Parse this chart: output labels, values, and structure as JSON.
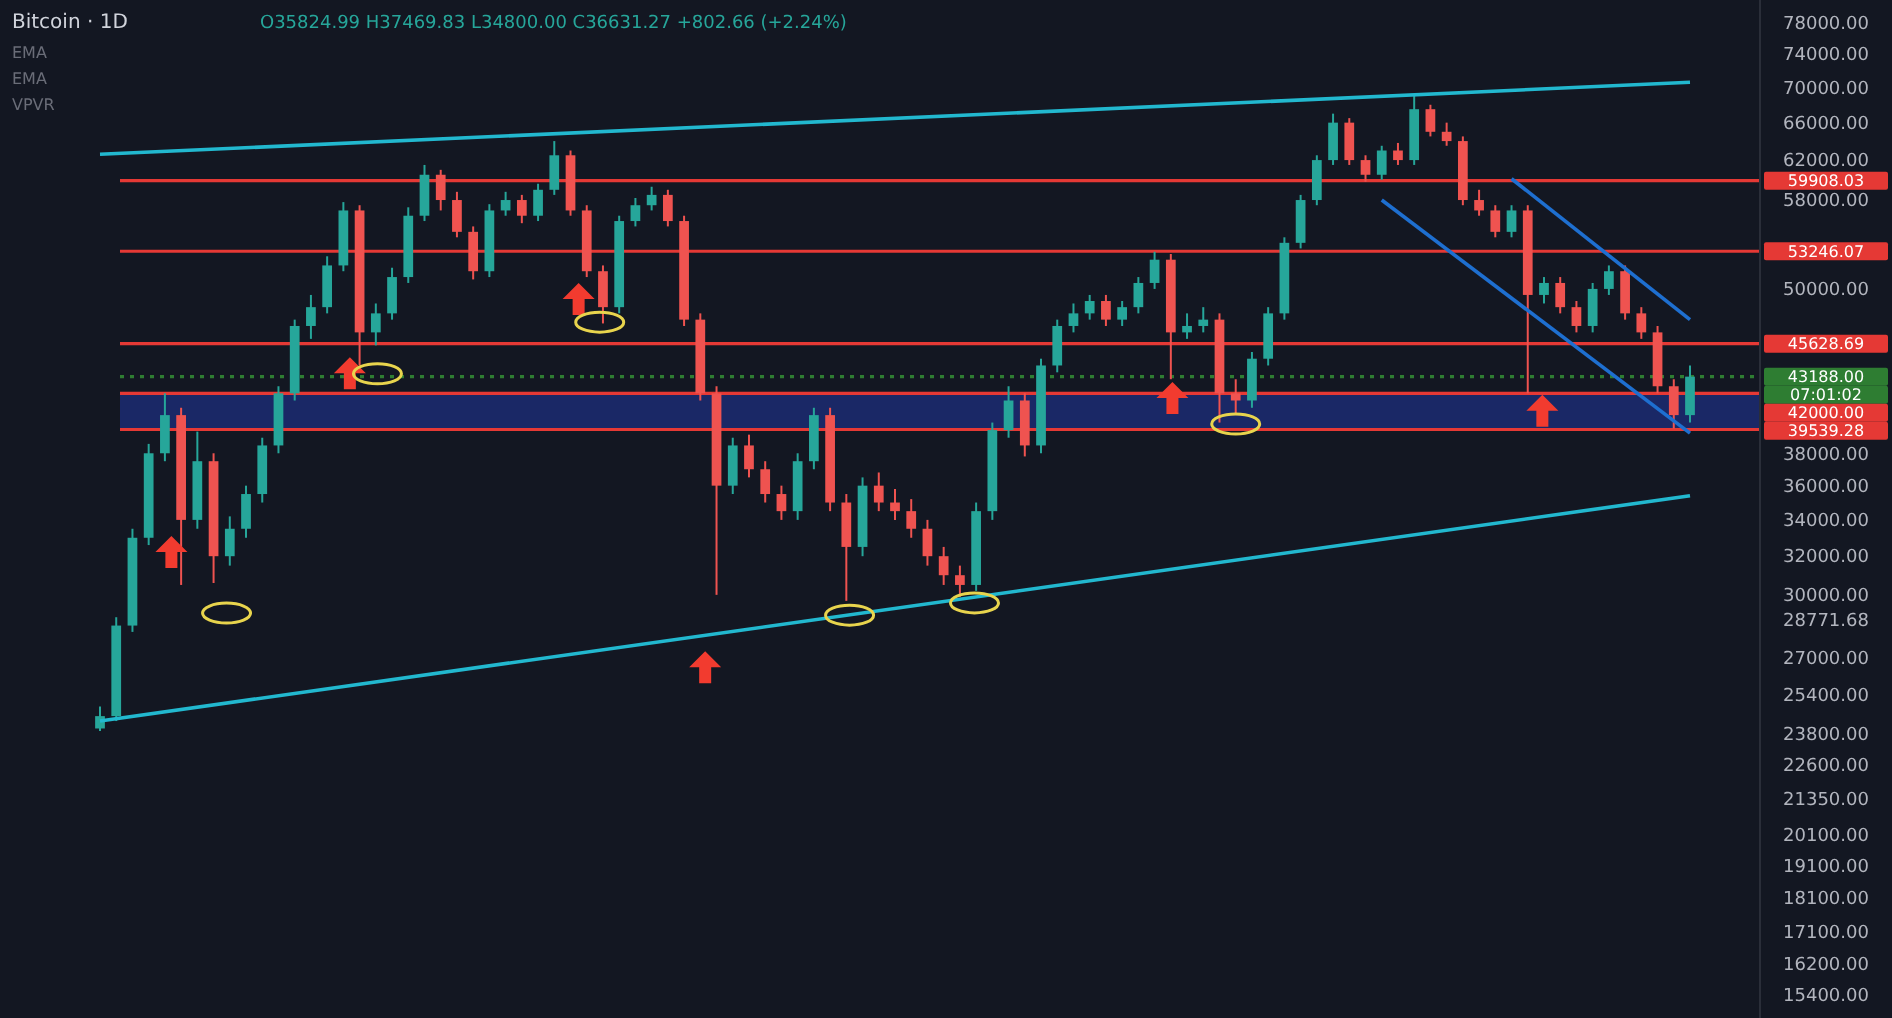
{
  "chart_data": {
    "type": "candlestick",
    "title": "Bitcoin · 1D",
    "annotations": [
      "O35824.99 H37469.83 L34800.00 C36631.27 +802.66 (+2.24%)",
      "EMA",
      "EMA",
      "VPVR",
      "07:01:02"
    ],
    "categories": [
      null,
      null,
      null,
      null,
      null,
      null,
      null,
      null,
      null,
      null,
      null,
      null,
      null,
      null,
      null,
      null,
      null,
      null,
      null,
      null,
      null,
      null,
      null,
      null,
      null,
      null,
      null,
      null,
      null,
      null,
      null,
      null,
      null,
      null,
      null,
      null,
      null,
      null,
      null,
      null,
      null,
      null,
      null,
      null,
      null,
      null,
      null,
      null,
      null,
      null,
      null,
      null,
      null,
      null,
      null,
      null,
      null,
      null,
      null,
      null,
      null,
      null,
      null,
      null,
      null,
      null,
      null,
      null,
      null,
      null,
      null,
      null,
      null,
      null,
      null,
      null,
      null,
      null,
      null,
      null,
      null,
      null,
      null,
      null,
      null,
      null,
      null,
      null,
      null,
      null,
      null,
      null,
      null,
      null,
      null,
      null,
      null,
      null,
      null
    ],
    "colors": [
      "#26a69a",
      "#26a69a",
      "#26a69a",
      "#26a69a",
      "#26a69a",
      "#ef5350",
      "#26a69a",
      "#ef5350",
      "#26a69a",
      "#26a69a",
      "#26a69a",
      "#26a69a",
      "#26a69a",
      "#26a69a",
      "#26a69a",
      "#26a69a",
      "#ef5350",
      "#26a69a",
      "#26a69a",
      "#26a69a",
      "#26a69a",
      "#ef5350",
      "#ef5350",
      "#ef5350",
      "#26a69a",
      "#26a69a",
      "#ef5350",
      "#26a69a",
      "#26a69a",
      "#ef5350",
      "#ef5350",
      "#ef5350",
      "#26a69a",
      "#26a69a",
      "#26a69a",
      "#ef5350",
      "#ef5350",
      "#ef5350",
      "#ef5350",
      "#26a69a",
      "#ef5350",
      "#ef5350",
      "#ef5350",
      "#26a69a",
      "#26a69a",
      "#ef5350",
      "#ef5350",
      "#26a69a",
      "#ef5350",
      "#ef5350",
      "#ef5350",
      "#ef5350",
      "#ef5350",
      "#ef5350",
      "#26a69a",
      "#26a69a",
      "#26a69a",
      "#ef5350",
      "#26a69a",
      "#26a69a",
      "#26a69a",
      "#26a69a",
      "#ef5350",
      "#26a69a",
      "#26a69a",
      "#26a69a",
      "#ef5350",
      "#26a69a",
      "#26a69a",
      "#ef5350",
      "#ef5350",
      "#26a69a",
      "#26a69a",
      "#26a69a",
      "#26a69a",
      "#26a69a",
      "#26a69a",
      "#ef5350",
      "#ef5350",
      "#26a69a",
      "#ef5350",
      "#26a69a",
      "#ef5350",
      "#ef5350",
      "#ef5350",
      "#ef5350",
      "#ef5350",
      "#26a69a",
      "#ef5350",
      "#26a69a",
      "#ef5350",
      "#ef5350",
      "#26a69a",
      "#26a69a",
      "#ef5350",
      "#ef5350",
      "#ef5350",
      "#ef5350",
      "#26a69a"
    ],
    "ohlc": [
      [
        24000,
        24900,
        23900,
        24500
      ],
      [
        24500,
        28900,
        24300,
        28500
      ],
      [
        28500,
        33500,
        28200,
        33000
      ],
      [
        33000,
        38600,
        32600,
        38000
      ],
      [
        38000,
        42000,
        37500,
        40500
      ],
      [
        40500,
        41000,
        30500,
        34000
      ],
      [
        34000,
        39400,
        33500,
        37500
      ],
      [
        37500,
        38000,
        30600,
        32000
      ],
      [
        32000,
        34200,
        31500,
        33500
      ],
      [
        33500,
        36000,
        33000,
        35500
      ],
      [
        35500,
        39000,
        35000,
        38500
      ],
      [
        38500,
        42500,
        38000,
        42000
      ],
      [
        42000,
        47500,
        41500,
        47000
      ],
      [
        47000,
        49500,
        46000,
        48500
      ],
      [
        48500,
        52800,
        48000,
        52000
      ],
      [
        52000,
        57800,
        51500,
        57000
      ],
      [
        57000,
        57500,
        44000,
        46500
      ],
      [
        46500,
        48800,
        45500,
        48000
      ],
      [
        48000,
        51800,
        47500,
        51000
      ],
      [
        51000,
        57300,
        50500,
        56500
      ],
      [
        56500,
        61500,
        56000,
        60500
      ],
      [
        60500,
        61000,
        57000,
        58000
      ],
      [
        58000,
        58800,
        54500,
        55000
      ],
      [
        55000,
        55500,
        50800,
        51500
      ],
      [
        51500,
        57600,
        51000,
        57000
      ],
      [
        57000,
        58800,
        56500,
        58000
      ],
      [
        58000,
        58500,
        55800,
        56500
      ],
      [
        56500,
        59600,
        56000,
        59000
      ],
      [
        59000,
        64000,
        58500,
        62500
      ],
      [
        62500,
        63000,
        56500,
        57000
      ],
      [
        57000,
        57500,
        51000,
        51500
      ],
      [
        51500,
        52000,
        47200,
        48500
      ],
      [
        48500,
        56500,
        48000,
        56000
      ],
      [
        56000,
        58200,
        55500,
        57500
      ],
      [
        57500,
        59300,
        57000,
        58500
      ],
      [
        58500,
        59000,
        55500,
        56000
      ],
      [
        56000,
        56500,
        47000,
        47500
      ],
      [
        47500,
        48000,
        41500,
        42000
      ],
      [
        42000,
        42500,
        30000,
        36000
      ],
      [
        36000,
        39000,
        35500,
        38500
      ],
      [
        38500,
        39200,
        36500,
        37000
      ],
      [
        37000,
        37500,
        35000,
        35500
      ],
      [
        35500,
        36000,
        34000,
        34500
      ],
      [
        34500,
        38000,
        34000,
        37500
      ],
      [
        37500,
        41000,
        37000,
        40500
      ],
      [
        40500,
        41000,
        34500,
        35000
      ],
      [
        35000,
        35500,
        29700,
        32500
      ],
      [
        32500,
        36500,
        32000,
        36000
      ],
      [
        36000,
        36800,
        34500,
        35000
      ],
      [
        35000,
        35800,
        34000,
        34500
      ],
      [
        34500,
        35200,
        33000,
        33500
      ],
      [
        33500,
        34000,
        31500,
        32000
      ],
      [
        32000,
        32500,
        30500,
        31000
      ],
      [
        31000,
        31500,
        29900,
        30500
      ],
      [
        30500,
        35000,
        30200,
        34500
      ],
      [
        34500,
        40000,
        34000,
        39500
      ],
      [
        39500,
        42500,
        39000,
        41500
      ],
      [
        41500,
        42000,
        37800,
        38500
      ],
      [
        38500,
        44500,
        38000,
        44000
      ],
      [
        44000,
        47500,
        43500,
        47000
      ],
      [
        47000,
        48800,
        46500,
        48000
      ],
      [
        48000,
        49500,
        47500,
        49000
      ],
      [
        49000,
        49500,
        47000,
        47500
      ],
      [
        47500,
        49000,
        47000,
        48500
      ],
      [
        48500,
        51000,
        48000,
        50500
      ],
      [
        50500,
        53200,
        50000,
        52500
      ],
      [
        52500,
        53000,
        43000,
        46500
      ],
      [
        46500,
        48000,
        46000,
        47000
      ],
      [
        47000,
        48500,
        46500,
        47500
      ],
      [
        47500,
        48000,
        40000,
        42000
      ],
      [
        42000,
        43000,
        40500,
        41500
      ],
      [
        41500,
        45000,
        41000,
        44500
      ],
      [
        44500,
        48500,
        44000,
        48000
      ],
      [
        48000,
        54500,
        47500,
        54000
      ],
      [
        54000,
        58500,
        53500,
        58000
      ],
      [
        58000,
        62500,
        57500,
        62000
      ],
      [
        62000,
        67000,
        61500,
        66000
      ],
      [
        66000,
        66500,
        61500,
        62000
      ],
      [
        62000,
        62500,
        59800,
        60500
      ],
      [
        60500,
        63500,
        60000,
        63000
      ],
      [
        63000,
        63800,
        61500,
        62000
      ],
      [
        62000,
        69000,
        61500,
        67500
      ],
      [
        67500,
        68000,
        64500,
        65000
      ],
      [
        65000,
        66000,
        63500,
        64000
      ],
      [
        64000,
        64500,
        57500,
        58000
      ],
      [
        58000,
        59000,
        56500,
        57000
      ],
      [
        57000,
        57500,
        54500,
        55000
      ],
      [
        55000,
        57500,
        54500,
        57000
      ],
      [
        57000,
        57500,
        42000,
        49500
      ],
      [
        49500,
        51000,
        48800,
        50500
      ],
      [
        50500,
        51000,
        48000,
        48500
      ],
      [
        48500,
        49000,
        46500,
        47000
      ],
      [
        47000,
        50500,
        46500,
        50000
      ],
      [
        50000,
        52000,
        49500,
        51500
      ],
      [
        51500,
        52000,
        47500,
        48000
      ],
      [
        48000,
        48500,
        46000,
        46500
      ],
      [
        46500,
        47000,
        42000,
        42500
      ],
      [
        42500,
        43000,
        39600,
        40500
      ],
      [
        40500,
        44000,
        40000,
        43188
      ]
    ],
    "series": [
      {
        "type": "line",
        "color": "#22b8cf",
        "values": [
          62600,
          null,
          null,
          null,
          null,
          null,
          null,
          null,
          null,
          null,
          null,
          null,
          null,
          null,
          null,
          null,
          null,
          null,
          null,
          null,
          null,
          null,
          null,
          null,
          null,
          null,
          null,
          null,
          null,
          null,
          null,
          null,
          null,
          null,
          null,
          null,
          null,
          null,
          null,
          null,
          null,
          null,
          null,
          null,
          null,
          null,
          null,
          null,
          null,
          null,
          null,
          null,
          null,
          null,
          null,
          null,
          null,
          null,
          null,
          null,
          null,
          null,
          null,
          null,
          null,
          null,
          null,
          null,
          null,
          null,
          null,
          null,
          null,
          null,
          null,
          null,
          null,
          null,
          null,
          null,
          null,
          null,
          null,
          null,
          null,
          null,
          null,
          null,
          null,
          null,
          null,
          null,
          null,
          null,
          null,
          null,
          null,
          null,
          70600
        ]
      },
      {
        "type": "line",
        "color": "#22b8cf",
        "values": [
          24300,
          null,
          null,
          null,
          null,
          null,
          null,
          null,
          null,
          null,
          null,
          null,
          null,
          null,
          null,
          null,
          null,
          null,
          null,
          null,
          null,
          null,
          null,
          null,
          null,
          null,
          null,
          null,
          null,
          null,
          null,
          null,
          null,
          null,
          null,
          null,
          null,
          null,
          null,
          null,
          null,
          null,
          null,
          null,
          null,
          null,
          null,
          null,
          null,
          null,
          null,
          null,
          null,
          null,
          null,
          null,
          null,
          null,
          null,
          null,
          null,
          null,
          null,
          null,
          null,
          null,
          null,
          null,
          null,
          null,
          null,
          null,
          null,
          null,
          null,
          null,
          null,
          null,
          null,
          null,
          null,
          null,
          null,
          null,
          null,
          null,
          null,
          null,
          null,
          null,
          null,
          null,
          null,
          null,
          null,
          null,
          null,
          null,
          35400
        ]
      },
      {
        "type": "line",
        "color": "#1e6fd0",
        "values": [
          null,
          null,
          null,
          null,
          null,
          null,
          null,
          null,
          null,
          null,
          null,
          null,
          null,
          null,
          null,
          null,
          null,
          null,
          null,
          null,
          null,
          null,
          null,
          null,
          null,
          null,
          null,
          null,
          null,
          null,
          null,
          null,
          null,
          null,
          null,
          null,
          null,
          null,
          null,
          null,
          null,
          null,
          null,
          null,
          null,
          null,
          null,
          null,
          null,
          null,
          null,
          null,
          null,
          null,
          null,
          null,
          null,
          null,
          null,
          null,
          null,
          null,
          null,
          null,
          null,
          null,
          null,
          null,
          null,
          null,
          null,
          null,
          null,
          null,
          null,
          null,
          null,
          null,
          null,
          58000,
          null,
          null,
          null,
          null,
          null,
          null,
          null,
          null,
          null,
          null,
          null,
          null,
          null,
          null,
          null,
          null,
          null,
          null,
          39300
        ]
      },
      {
        "type": "line",
        "color": "#1e6fd0",
        "values": [
          null,
          null,
          null,
          null,
          null,
          null,
          null,
          null,
          null,
          null,
          null,
          null,
          null,
          null,
          null,
          null,
          null,
          null,
          null,
          null,
          null,
          null,
          null,
          null,
          null,
          null,
          null,
          null,
          null,
          null,
          null,
          null,
          null,
          null,
          null,
          null,
          null,
          null,
          null,
          null,
          null,
          null,
          null,
          null,
          null,
          null,
          null,
          null,
          null,
          null,
          null,
          null,
          null,
          null,
          null,
          null,
          null,
          null,
          null,
          null,
          null,
          null,
          null,
          null,
          null,
          null,
          null,
          null,
          null,
          null,
          null,
          null,
          null,
          null,
          null,
          null,
          null,
          null,
          null,
          null,
          null,
          null,
          null,
          null,
          null,
          null,
          null,
          60100,
          null,
          null,
          null,
          null,
          null,
          null,
          null,
          null,
          null,
          null,
          47500
        ]
      }
    ],
    "bands": [
      {
        "axis": "y",
        "from": 39539.28,
        "to": 42000,
        "color": "#1c2a6e"
      }
    ],
    "ref_lines": [
      {
        "axis": "y",
        "value": 59908.03,
        "label": "59908.03",
        "color": "#e53935"
      },
      {
        "axis": "y",
        "value": 53246.07,
        "label": "53246.07",
        "color": "#e53935"
      },
      {
        "axis": "y",
        "value": 45628.69,
        "label": "45628.69",
        "color": "#e53935"
      },
      {
        "axis": "y",
        "value": 43188,
        "label": "43188.00",
        "color": "#2e7d32",
        "line_style": "dotted"
      },
      {
        "axis": "y",
        "value": 42000,
        "label": "42000.00",
        "color": "#e53935"
      },
      {
        "axis": "y",
        "value": 39539.28,
        "label": "39539.28",
        "color": "#e53935"
      }
    ],
    "log": true,
    "ylim": [
      14800,
      81000
    ],
    "yticks": [
      {
        "value": 78000,
        "label": "78000.00"
      },
      {
        "value": 74000,
        "label": "74000.00"
      },
      {
        "value": 70000,
        "label": "70000.00"
      },
      {
        "value": 66000,
        "label": "66000.00"
      },
      {
        "value": 62000,
        "label": "62000.00"
      },
      {
        "value": 58000,
        "label": "58000.00"
      },
      {
        "value": 50000,
        "label": "50000.00"
      },
      {
        "value": 38000,
        "label": "38000.00"
      },
      {
        "value": 36000,
        "label": "36000.00"
      },
      {
        "value": 34000,
        "label": "34000.00"
      },
      {
        "value": 32000,
        "label": "32000.00"
      },
      {
        "value": 30000,
        "label": "30000.00"
      },
      {
        "value": 28771.68,
        "label": "28771.68"
      },
      {
        "value": 27000,
        "label": "27000.00"
      },
      {
        "value": 25400,
        "label": "25400.00"
      },
      {
        "value": 23800,
        "label": "23800.00"
      },
      {
        "value": 22600,
        "label": "22600.00"
      },
      {
        "value": 21350,
        "label": "21350.00"
      },
      {
        "value": 20100,
        "label": "20100.00"
      },
      {
        "value": 19100,
        "label": "19100.00"
      },
      {
        "value": 18100,
        "label": "18100.00"
      },
      {
        "value": 17100,
        "label": "17100.00"
      },
      {
        "value": 16200,
        "label": "16200.00"
      },
      {
        "value": 15400,
        "label": "15400.00"
      }
    ],
    "tick_labels": "y",
    "grid": false
  }
}
